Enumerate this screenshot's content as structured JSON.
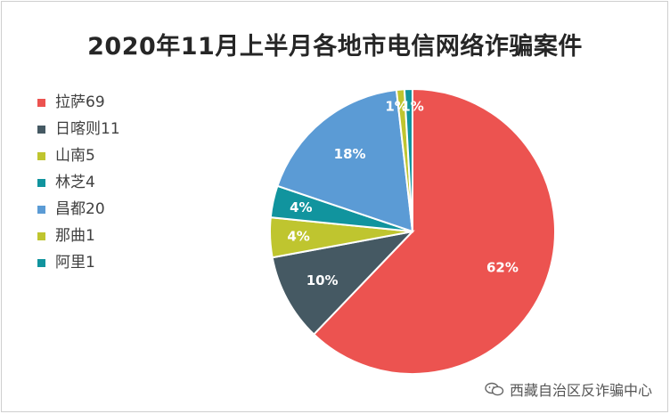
{
  "title": "2020年11月上半月各地市电信网络诈骗案件",
  "watermark": "西藏自治区反诈骗中心",
  "chart_data": {
    "type": "pie",
    "title": "2020年11月上半月各地市电信网络诈骗案件",
    "legend_position": "left",
    "slices": [
      {
        "name": "拉萨",
        "value": 69,
        "legend": "拉萨69",
        "label": "62%",
        "color": "#ec5350"
      },
      {
        "name": "日喀则",
        "value": 11,
        "legend": "日喀则11",
        "label": "10%",
        "color": "#455963"
      },
      {
        "name": "山南",
        "value": 5,
        "legend": "山南5",
        "label": "4%",
        "color": "#bfc52f"
      },
      {
        "name": "林芝",
        "value": 4,
        "legend": "林芝4",
        "label": "4%",
        "color": "#11949e"
      },
      {
        "name": "昌都",
        "value": 20,
        "legend": "昌都20",
        "label": "18%",
        "color": "#5b9bd5"
      },
      {
        "name": "那曲",
        "value": 1,
        "legend": "那曲1",
        "label": "1%",
        "color": "#bfc52f"
      },
      {
        "name": "阿里",
        "value": 1,
        "legend": "阿里1",
        "label": "1%",
        "color": "#11949e"
      }
    ]
  }
}
